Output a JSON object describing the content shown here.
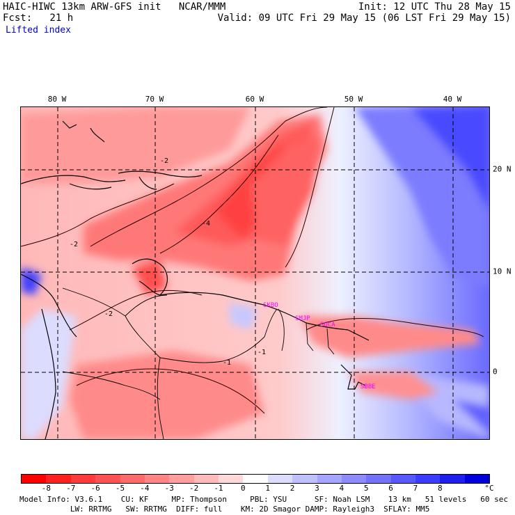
{
  "header": {
    "model_title": "HAIC-HIWC 13km ARW-GFS init   NCAR/MMM",
    "forecast": "Fcst:   21 h",
    "field": "Lifted index",
    "init": "Init: 12 UTC Thu 28 May 15",
    "valid": "Valid: 09 UTC Fri 29 May 15 (06 LST Fri 29 May 15)"
  },
  "axes": {
    "lon_labels": [
      "80 W",
      "70 W",
      "60 W",
      "50 W",
      "40 W"
    ],
    "lat_labels": [
      "20 N",
      "10 N",
      "0"
    ]
  },
  "stations": [
    "SKBO",
    "SMJP",
    "SOCA",
    "SBBE"
  ],
  "contour_labels": [
    "-2",
    "-2",
    "-1",
    "-1",
    "-2",
    "-4"
  ],
  "colorbar": {
    "ticks": [
      "-8",
      "-7",
      "-6",
      "-5",
      "-4",
      "-3",
      "-2",
      "-1",
      "0",
      "1",
      "2",
      "3",
      "4",
      "5",
      "6",
      "7",
      "8"
    ],
    "unit": "°C",
    "colors": [
      "#ff0000",
      "#ff2020",
      "#ff3a3a",
      "#ff5252",
      "#ff6a6a",
      "#ff8484",
      "#ff9e9e",
      "#ffbaba",
      "#ffd8d8",
      "#ffffff",
      "#dcdcff",
      "#c0c0ff",
      "#a6a6ff",
      "#8c8cff",
      "#7272ff",
      "#5858ff",
      "#3c3cff",
      "#2020ee",
      "#0000dd"
    ]
  },
  "footer": {
    "line1": "Model Info: V3.6.1    CU: KF     MP: Thompson     PBL: YSU      SF: Noah LSM    13 km   51 levels   60 sec",
    "line2": "           LW: RRTMG   SW: RRTMG  DIFF: full    KM: 2D Smagor DAMP: Rayleigh3  SFLAY: MM5"
  }
}
